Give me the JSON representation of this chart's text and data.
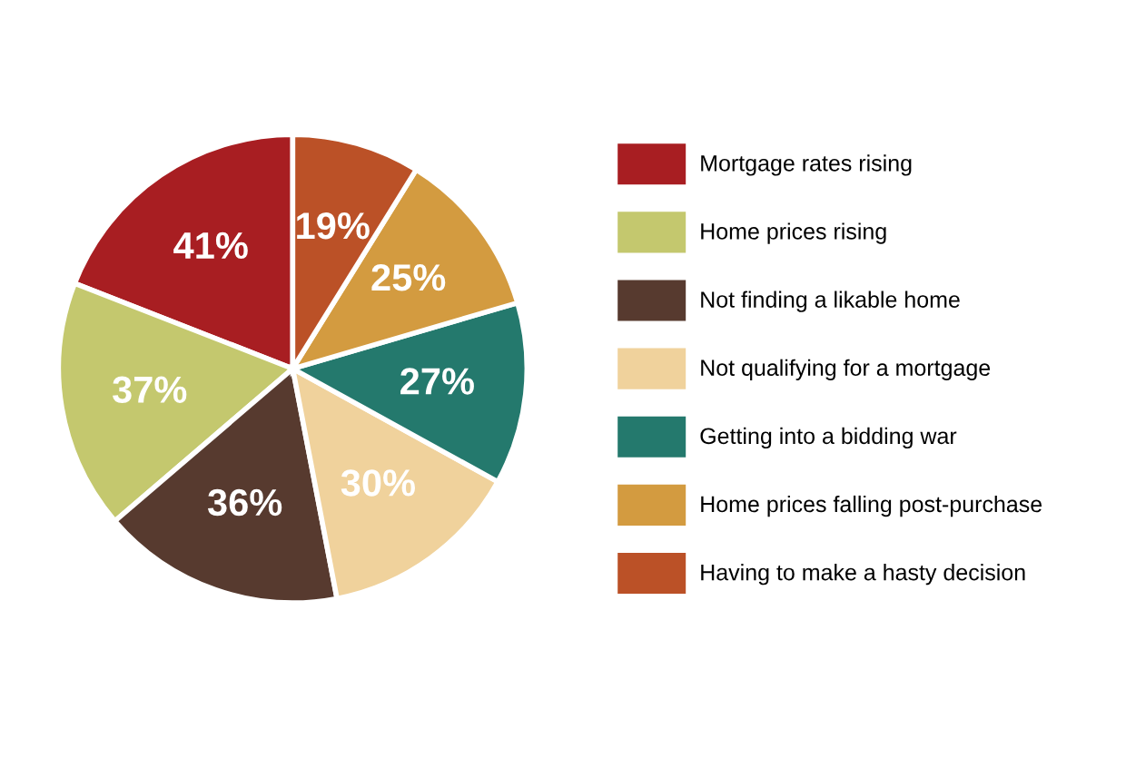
{
  "chart_data": {
    "type": "pie",
    "categories": [
      "Mortgage rates rising",
      "Home prices rising",
      "Not finding a likable home",
      "Not qualifying for a mortgage",
      "Getting into a bidding war",
      "Home prices falling post-purchase",
      "Having to make a hasty decision"
    ],
    "values": [
      41,
      37,
      36,
      30,
      27,
      25,
      19
    ],
    "value_labels": [
      "41%",
      "37%",
      "36%",
      "30%",
      "27%",
      "25%",
      "19%"
    ],
    "colors": [
      "#a81e22",
      "#c4c86e",
      "#573a2f",
      "#f0d29c",
      "#24796d",
      "#d39b40",
      "#bb5127"
    ],
    "legend": "right"
  }
}
